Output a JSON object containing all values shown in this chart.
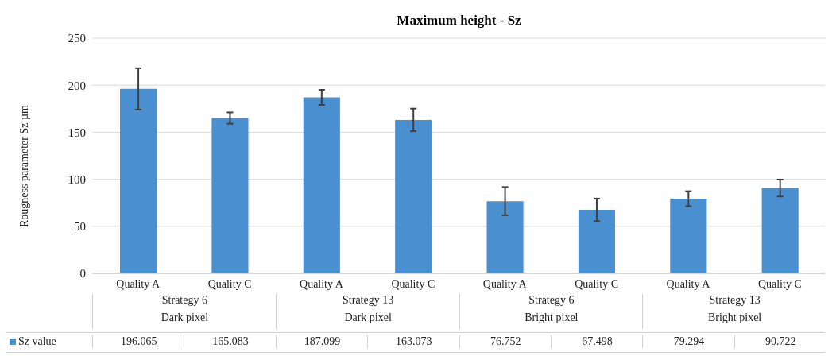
{
  "chart_data": {
    "type": "bar",
    "title": "Maximum height - Sz",
    "ylabel": "Rougness parameter Sz µm",
    "categories": [
      "Quality A",
      "Quality C",
      "Quality A",
      "Quality C",
      "Quality A",
      "Quality C",
      "Quality A",
      "Quality C"
    ],
    "series": [
      {
        "name": "Sz value",
        "color": "#4a8fd0",
        "values": [
          196.065,
          165.083,
          187.099,
          163.073,
          76.752,
          67.498,
          79.294,
          90.722
        ],
        "errors": [
          22,
          6,
          8,
          12,
          15,
          12,
          8,
          9
        ]
      }
    ],
    "annotations": [
      "Strategy 6",
      "Strategy 13",
      "Strategy 6",
      "Strategy 13",
      "Dark pixel",
      "Dark pixel",
      "Bright pixel",
      "Bright pixel"
    ],
    "ylim": [
      0,
      250
    ],
    "yticks": [
      0,
      50,
      100,
      150,
      200,
      250
    ],
    "grid": "y",
    "legend": "bottom",
    "data_labels": true
  }
}
